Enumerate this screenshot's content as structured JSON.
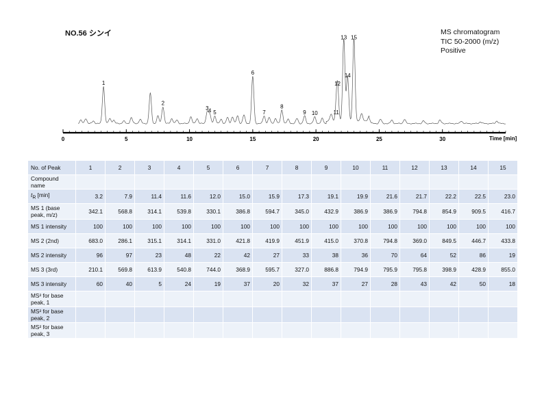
{
  "header": {
    "sample_title": "NO.56 シンイ",
    "mode_line1": "MS chromatogram",
    "mode_line2": "TIC 50-2000 (m/z)",
    "mode_line3": "Positive"
  },
  "chart_data": {
    "type": "line",
    "xlabel": "Time [min]",
    "xlim": [
      0,
      35
    ],
    "x_ticks": [
      0,
      5,
      10,
      15,
      20,
      25,
      30
    ],
    "ylim": [
      0,
      100
    ],
    "grid": false,
    "peaks": [
      {
        "label": "1",
        "x": 3.2,
        "y": 44
      },
      {
        "label": "2",
        "x": 7.9,
        "y": 20
      },
      {
        "label": "3",
        "x": 11.4,
        "y": 14
      },
      {
        "label": "4",
        "x": 11.6,
        "y": 11
      },
      {
        "label": "5",
        "x": 12.0,
        "y": 9
      },
      {
        "label": "6",
        "x": 15.0,
        "y": 56
      },
      {
        "label": "7",
        "x": 15.9,
        "y": 9
      },
      {
        "label": "8",
        "x": 17.3,
        "y": 16
      },
      {
        "label": "9",
        "x": 19.1,
        "y": 9
      },
      {
        "label": "10",
        "x": 19.9,
        "y": 8
      },
      {
        "label": "11",
        "x": 21.6,
        "y": 9
      },
      {
        "label": "12",
        "x": 21.7,
        "y": 43
      },
      {
        "label": "13",
        "x": 22.2,
        "y": 98
      },
      {
        "label": "14",
        "x": 22.5,
        "y": 53
      },
      {
        "label": "15",
        "x": 23.0,
        "y": 98
      }
    ],
    "minor_peaks": [
      {
        "x": 1.4,
        "y": 4
      },
      {
        "x": 1.8,
        "y": 6
      },
      {
        "x": 2.4,
        "y": 3
      },
      {
        "x": 3.7,
        "y": 6
      },
      {
        "x": 4.0,
        "y": 4
      },
      {
        "x": 4.8,
        "y": 3
      },
      {
        "x": 5.4,
        "y": 7
      },
      {
        "x": 6.1,
        "y": 5
      },
      {
        "x": 6.9,
        "y": 36
      },
      {
        "x": 7.5,
        "y": 9
      },
      {
        "x": 8.6,
        "y": 6
      },
      {
        "x": 9.0,
        "y": 4
      },
      {
        "x": 10.1,
        "y": 8
      },
      {
        "x": 10.6,
        "y": 6
      },
      {
        "x": 12.5,
        "y": 5
      },
      {
        "x": 13.0,
        "y": 7
      },
      {
        "x": 13.4,
        "y": 8
      },
      {
        "x": 13.8,
        "y": 9
      },
      {
        "x": 14.3,
        "y": 10
      },
      {
        "x": 16.3,
        "y": 7
      },
      {
        "x": 16.8,
        "y": 6
      },
      {
        "x": 17.8,
        "y": 5
      },
      {
        "x": 18.5,
        "y": 6
      },
      {
        "x": 20.5,
        "y": 6
      },
      {
        "x": 21.2,
        "y": 8
      },
      {
        "x": 23.6,
        "y": 9
      },
      {
        "x": 24.2,
        "y": 6
      },
      {
        "x": 25.1,
        "y": 5
      },
      {
        "x": 26.0,
        "y": 4
      },
      {
        "x": 27.0,
        "y": 5
      },
      {
        "x": 28.5,
        "y": 3
      },
      {
        "x": 29.8,
        "y": 4
      },
      {
        "x": 31.5,
        "y": 3
      },
      {
        "x": 33.0,
        "y": 2
      },
      {
        "x": 34.3,
        "y": 3
      }
    ]
  },
  "table": {
    "peak_header": "No. of Peak",
    "peak_numbers": [
      "1",
      "2",
      "3",
      "4",
      "5",
      "6",
      "7",
      "8",
      "9",
      "10",
      "11",
      "12",
      "13",
      "14",
      "15"
    ],
    "rows": [
      {
        "label": "Compound name",
        "values": [
          "",
          "",
          "",
          "",
          "",
          "",
          "",
          "",
          "",
          "",
          "",
          "",
          "",
          "",
          ""
        ]
      },
      {
        "label": "tR [min]",
        "values": [
          "3.2",
          "7.9",
          "11.4",
          "11.6",
          "12.0",
          "15.0",
          "15.9",
          "17.3",
          "19.1",
          "19.9",
          "21.6",
          "21.7",
          "22.2",
          "22.5",
          "23.0"
        ]
      },
      {
        "label": "MS 1 (base peak, m/z)",
        "values": [
          "342.1",
          "568.8",
          "314.1",
          "539.8",
          "330.1",
          "386.8",
          "594.7",
          "345.0",
          "432.9",
          "386.9",
          "386.9",
          "794.8",
          "854.9",
          "909.5",
          "416.7"
        ]
      },
      {
        "label": "MS 1 intensity",
        "values": [
          "100",
          "100",
          "100",
          "100",
          "100",
          "100",
          "100",
          "100",
          "100",
          "100",
          "100",
          "100",
          "100",
          "100",
          "100"
        ]
      },
      {
        "label": "MS 2 (2nd)",
        "values": [
          "683.0",
          "286.1",
          "315.1",
          "314.1",
          "331.0",
          "421.8",
          "419.9",
          "451.9",
          "415.0",
          "370.8",
          "794.8",
          "369.0",
          "849.5",
          "446.7",
          "433.8"
        ]
      },
      {
        "label": "MS 2 intensity",
        "values": [
          "96",
          "97",
          "23",
          "48",
          "22",
          "42",
          "27",
          "33",
          "38",
          "36",
          "70",
          "64",
          "52",
          "86",
          "19"
        ]
      },
      {
        "label": "MS 3 (3rd)",
        "values": [
          "210.1",
          "569.8",
          "613.9",
          "540.8",
          "744.0",
          "368.9",
          "595.7",
          "327.0",
          "886.8",
          "794.9",
          "795.9",
          "795.8",
          "398.9",
          "428.9",
          "855.0"
        ]
      },
      {
        "label": "MS 3 intensity",
        "values": [
          "60",
          "40",
          "5",
          "24",
          "19",
          "37",
          "20",
          "32",
          "37",
          "27",
          "28",
          "43",
          "42",
          "50",
          "18"
        ]
      },
      {
        "label": "MS² for base peak, 1",
        "values": [
          "",
          "",
          "",
          "",
          "",
          "",
          "",
          "",
          "",
          "",
          "",
          "",
          "",
          "",
          ""
        ]
      },
      {
        "label": "MS² for base peak, 2",
        "values": [
          "",
          "",
          "",
          "",
          "",
          "",
          "",
          "",
          "",
          "",
          "",
          "",
          "",
          "",
          ""
        ]
      },
      {
        "label": "MS² for base peak, 3",
        "values": [
          "",
          "",
          "",
          "",
          "",
          "",
          "",
          "",
          "",
          "",
          "",
          "",
          "",
          "",
          ""
        ]
      }
    ]
  }
}
